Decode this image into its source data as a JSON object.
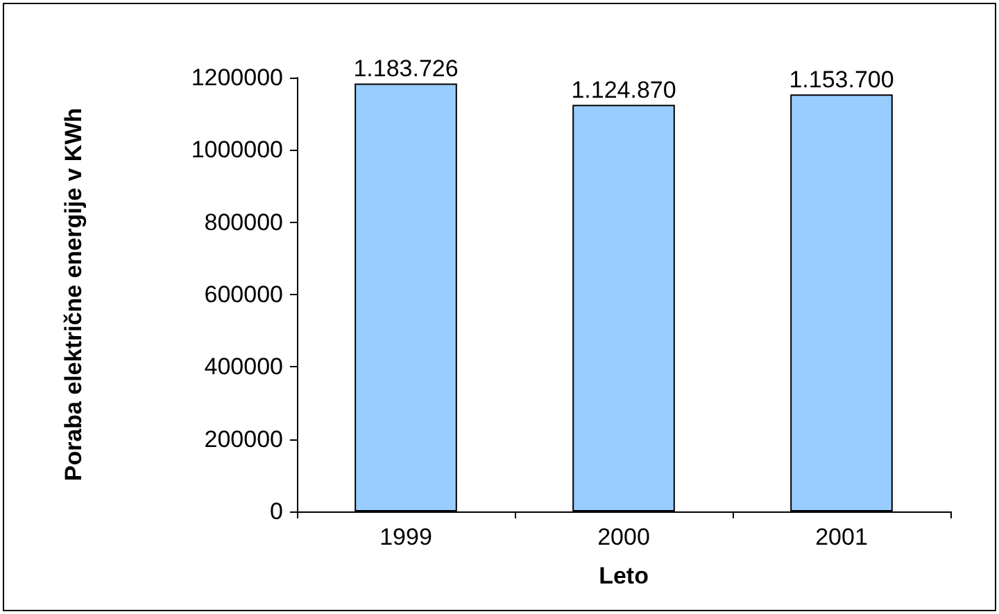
{
  "chart_data": {
    "type": "bar",
    "xlabel": "Leto",
    "ylabel": "Poraba električne energije v KWh",
    "categories": [
      "1999",
      "2000",
      "2001"
    ],
    "values": [
      1183726,
      1124870,
      1153700
    ],
    "value_labels": [
      "1.183.726",
      "1.124.870",
      "1.153.700"
    ],
    "color": "#99ccff",
    "ylim": [
      0,
      1200000
    ],
    "yticks": [
      0,
      200000,
      400000,
      600000,
      800000,
      1000000,
      1200000
    ]
  }
}
